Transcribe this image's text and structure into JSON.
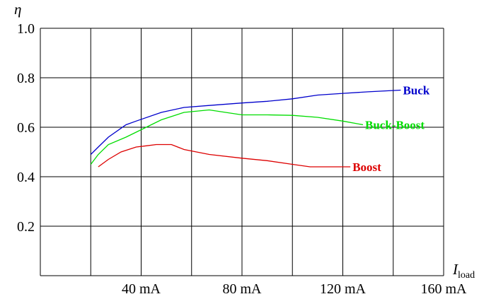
{
  "chart_data": {
    "type": "line",
    "ylabel": "η",
    "xlabel": {
      "main": "I",
      "sub": "load"
    },
    "ylim": [
      0,
      1.0
    ],
    "xlim": [
      0,
      160
    ],
    "x_ticks": [
      {
        "value": 40,
        "label": "40 mA"
      },
      {
        "value": 80,
        "label": "80 mA"
      },
      {
        "value": 120,
        "label": "120 mA"
      },
      {
        "value": 160,
        "label": "160 mA"
      }
    ],
    "y_ticks": [
      {
        "value": 0.2,
        "label": "0.2"
      },
      {
        "value": 0.4,
        "label": "0.4"
      },
      {
        "value": 0.6,
        "label": "0.6"
      },
      {
        "value": 0.8,
        "label": "0.8"
      },
      {
        "value": 1.0,
        "label": "1.0"
      }
    ],
    "grid": true,
    "series": [
      {
        "name": "Buck",
        "color": "#0000cc",
        "x": [
          20,
          23,
          27,
          34,
          38,
          48,
          57,
          67,
          80,
          90,
          100,
          110,
          120,
          130,
          143
        ],
        "y": [
          0.49,
          0.52,
          0.56,
          0.61,
          0.625,
          0.66,
          0.68,
          0.688,
          0.698,
          0.705,
          0.715,
          0.73,
          0.737,
          0.743,
          0.75
        ]
      },
      {
        "name": "Buck-Boost",
        "color": "#00dd00",
        "x": [
          20,
          23,
          27,
          34,
          38,
          48,
          57,
          67,
          80,
          90,
          100,
          110,
          120,
          128
        ],
        "y": [
          0.45,
          0.49,
          0.53,
          0.56,
          0.58,
          0.63,
          0.66,
          0.67,
          0.65,
          0.65,
          0.648,
          0.64,
          0.625,
          0.61
        ]
      },
      {
        "name": "Boost",
        "color": "#dd0000",
        "x": [
          23,
          27,
          32,
          38,
          42,
          46,
          52,
          57,
          67,
          80,
          90,
          100,
          107,
          123
        ],
        "y": [
          0.44,
          0.47,
          0.5,
          0.52,
          0.525,
          0.53,
          0.53,
          0.51,
          0.49,
          0.475,
          0.465,
          0.45,
          0.44,
          0.44
        ]
      }
    ]
  }
}
